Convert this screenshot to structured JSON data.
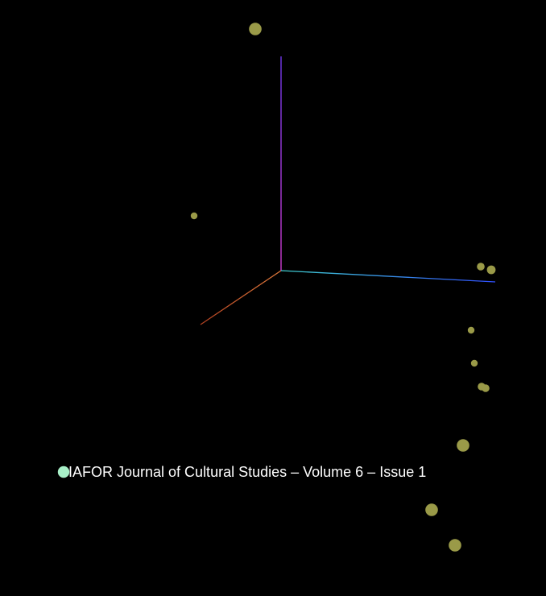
{
  "chart_data": {
    "type": "scatter",
    "projection": "3d",
    "background_color": "#000000",
    "axes": [
      {
        "name": "x",
        "color_start": "#e07a3c",
        "color_end": "#b04020"
      },
      {
        "name": "y",
        "color_start": "#e040e0",
        "color_end": "#7a3cff"
      },
      {
        "name": "z",
        "color_start": "#40d0d0",
        "color_end": "#3050ff"
      }
    ],
    "point_color": "#9a9a48",
    "highlight_color": "#a8f0c8",
    "highlighted_label": "IAFOR Journal of Cultural Studies – Volume 6 – Issue 1",
    "points": [
      {
        "id": 0,
        "size": 1.3,
        "highlighted": false
      },
      {
        "id": 1,
        "size": 0.7,
        "highlighted": false
      },
      {
        "id": 2,
        "size": 0.8,
        "highlighted": false
      },
      {
        "id": 3,
        "size": 0.9,
        "highlighted": false
      },
      {
        "id": 4,
        "size": 0.7,
        "highlighted": false
      },
      {
        "id": 5,
        "size": 0.7,
        "highlighted": false
      },
      {
        "id": 6,
        "size": 0.8,
        "highlighted": false
      },
      {
        "id": 7,
        "size": 0.8,
        "highlighted": false
      },
      {
        "id": 8,
        "size": 1.3,
        "highlighted": false
      },
      {
        "id": 9,
        "size": 1.2,
        "highlighted": true
      },
      {
        "id": 10,
        "size": 1.3,
        "highlighted": false
      },
      {
        "id": 11,
        "size": 1.3,
        "highlighted": false
      }
    ]
  }
}
